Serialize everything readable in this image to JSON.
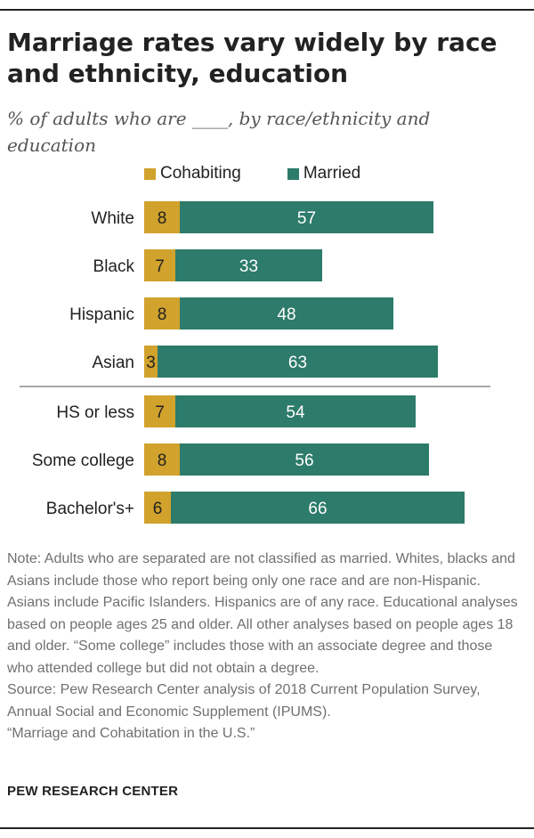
{
  "title": "Marriage rates vary widely by race and ethnicity, education",
  "subtitle": "% of adults who are ____, by race/ethnicity and education",
  "colors": {
    "cohabiting": "#d1a22c",
    "married": "#2d7b6a"
  },
  "chart_data": {
    "type": "bar",
    "orientation": "horizontal",
    "stacked": true,
    "categories": [
      "White",
      "Black",
      "Hispanic",
      "Asian",
      "HS or less",
      "Some college",
      "Bachelor's+"
    ],
    "series": [
      {
        "name": "Cohabiting",
        "values": [
          8,
          7,
          8,
          3,
          7,
          8,
          6
        ]
      },
      {
        "name": "Married",
        "values": [
          57,
          33,
          48,
          63,
          54,
          56,
          66
        ]
      }
    ],
    "groups": [
      {
        "name": "race/ethnicity",
        "categories": [
          "White",
          "Black",
          "Hispanic",
          "Asian"
        ]
      },
      {
        "name": "education",
        "categories": [
          "HS or less",
          "Some college",
          "Bachelor's+"
        ]
      }
    ],
    "xlim": [
      0,
      100
    ],
    "legend": "top",
    "title": "Marriage rates vary widely by race and ethnicity, education",
    "xlabel": "",
    "ylabel": ""
  },
  "legend": {
    "cohabiting": "Cohabiting",
    "married": "Married"
  },
  "note": {
    "note_text": "Note: Adults who are separated are not classified as married. Whites, blacks and Asians include those who report being only one race and are non-Hispanic. Asians include Pacific Islanders. Hispanics are of any race. Educational analyses based on people ages 25 and older. All other analyses based on people ages 18 and older. “Some college” includes those with an associate degree and those who attended college but did not obtain a degree.",
    "source_text": "Source: Pew Research Center analysis of 2018 Current Population Survey, Annual Social and Economic Supplement (IPUMS).",
    "report_title": "“Marriage and Cohabitation in the U.S.”"
  },
  "footer": {
    "brand": "PEW RESEARCH CENTER"
  }
}
